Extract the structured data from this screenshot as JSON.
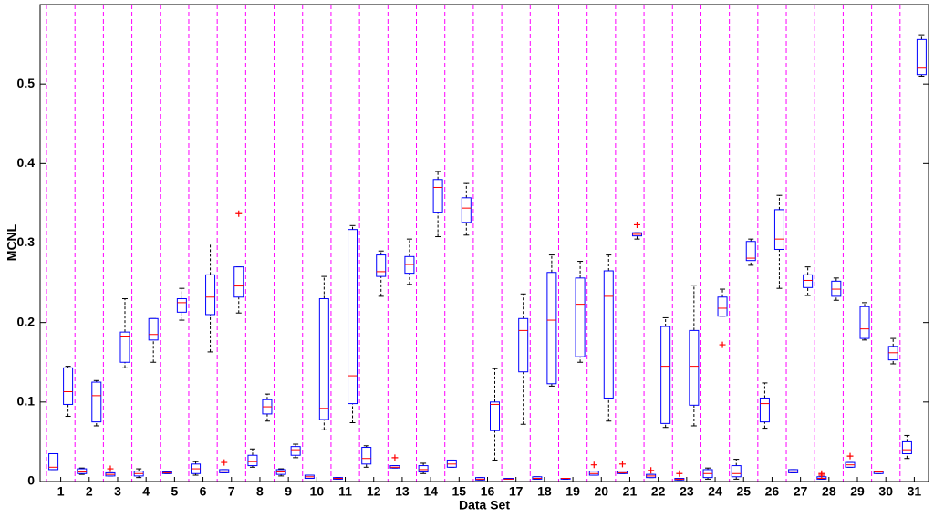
{
  "chart_data": {
    "type": "boxplot",
    "x_label": "Data Set",
    "y_label": "MCNL",
    "categories": [
      "1",
      "2",
      "3",
      "4",
      "5",
      "6",
      "7",
      "8",
      "9",
      "10",
      "11",
      "12",
      "13",
      "14",
      "15",
      "16",
      "17",
      "18",
      "19",
      "20",
      "21",
      "22",
      "23",
      "24",
      "25",
      "26",
      "27",
      "28",
      "29",
      "30",
      "31"
    ],
    "ylim": [
      0,
      0.6
    ],
    "yticks": [
      0,
      0.1,
      0.2,
      0.3,
      0.4,
      0.5
    ],
    "grid": false,
    "box_color": "#0000ff",
    "median_color": "#ff0000",
    "whisker_color": "#000000",
    "outlier_color": "#ff0000",
    "separator_color": "#ff00ff",
    "series": [
      {
        "values": [
          {
            "min": 0.015,
            "q1": 0.015,
            "median": 0.018,
            "q3": 0.035,
            "max": 0.035,
            "outliers": []
          },
          {
            "min": 0.009,
            "q1": 0.01,
            "median": 0.012,
            "q3": 0.016,
            "max": 0.017,
            "outliers": []
          },
          {
            "min": 0.007,
            "q1": 0.007,
            "median": 0.009,
            "q3": 0.011,
            "max": 0.011,
            "outliers": [
              0.016
            ]
          },
          {
            "min": 0.005,
            "q1": 0.007,
            "median": 0.01,
            "q3": 0.013,
            "max": 0.016,
            "outliers": []
          },
          {
            "min": 0.01,
            "q1": 0.01,
            "median": 0.011,
            "q3": 0.012,
            "max": 0.012,
            "outliers": []
          },
          {
            "min": 0.008,
            "q1": 0.01,
            "median": 0.016,
            "q3": 0.022,
            "max": 0.025,
            "outliers": []
          },
          {
            "min": 0.011,
            "q1": 0.011,
            "median": 0.013,
            "q3": 0.015,
            "max": 0.015,
            "outliers": [
              0.024
            ]
          },
          {
            "min": 0.018,
            "q1": 0.02,
            "median": 0.025,
            "q3": 0.033,
            "max": 0.041,
            "outliers": []
          },
          {
            "min": 0.007,
            "q1": 0.009,
            "median": 0.012,
            "q3": 0.015,
            "max": 0.016,
            "outliers": []
          },
          {
            "min": 0.004,
            "q1": 0.004,
            "median": 0.006,
            "q3": 0.008,
            "max": 0.008,
            "outliers": []
          },
          {
            "min": 0.003,
            "q1": 0.003,
            "median": 0.004,
            "q3": 0.005,
            "max": 0.005,
            "outliers": []
          },
          {
            "min": 0.018,
            "q1": 0.022,
            "median": 0.029,
            "q3": 0.043,
            "max": 0.045,
            "outliers": []
          },
          {
            "min": 0.017,
            "q1": 0.017,
            "median": 0.018,
            "q3": 0.02,
            "max": 0.02,
            "outliers": [
              0.03
            ]
          },
          {
            "min": 0.01,
            "q1": 0.012,
            "median": 0.015,
            "q3": 0.02,
            "max": 0.023,
            "outliers": []
          },
          {
            "min": 0.018,
            "q1": 0.018,
            "median": 0.022,
            "q3": 0.027,
            "max": 0.027,
            "outliers": []
          },
          {
            "min": 0.002,
            "q1": 0.002,
            "median": 0.003,
            "q3": 0.005,
            "max": 0.005,
            "outliers": []
          },
          {
            "min": 0.003,
            "q1": 0.003,
            "median": 0.003,
            "q3": 0.004,
            "max": 0.004,
            "outliers": []
          },
          {
            "min": 0.003,
            "q1": 0.003,
            "median": 0.004,
            "q3": 0.006,
            "max": 0.006,
            "outliers": []
          },
          {
            "min": 0.003,
            "q1": 0.003,
            "median": 0.004,
            "q3": 0.004,
            "max": 0.004,
            "outliers": []
          },
          {
            "min": 0.008,
            "q1": 0.008,
            "median": 0.01,
            "q3": 0.013,
            "max": 0.013,
            "outliers": [
              0.021
            ]
          },
          {
            "min": 0.01,
            "q1": 0.01,
            "median": 0.011,
            "q3": 0.013,
            "max": 0.013,
            "outliers": [
              0.022
            ]
          },
          {
            "min": 0.005,
            "q1": 0.005,
            "median": 0.007,
            "q3": 0.009,
            "max": 0.009,
            "outliers": [
              0.014
            ]
          },
          {
            "min": 0.002,
            "q1": 0.002,
            "median": 0.003,
            "q3": 0.004,
            "max": 0.004,
            "outliers": [
              0.01
            ]
          },
          {
            "min": 0.003,
            "q1": 0.005,
            "median": 0.01,
            "q3": 0.015,
            "max": 0.017,
            "outliers": []
          },
          {
            "min": 0.003,
            "q1": 0.006,
            "median": 0.01,
            "q3": 0.02,
            "max": 0.028,
            "outliers": []
          },
          {
            "min": 0.067,
            "q1": 0.075,
            "median": 0.098,
            "q3": 0.105,
            "max": 0.124,
            "outliers": []
          },
          {
            "min": 0.011,
            "q1": 0.011,
            "median": 0.013,
            "q3": 0.015,
            "max": 0.015,
            "outliers": []
          },
          {
            "min": 0.003,
            "q1": 0.003,
            "median": 0.004,
            "q3": 0.006,
            "max": 0.006,
            "outliers": [
              0.008,
              0.01
            ]
          },
          {
            "min": 0.018,
            "q1": 0.018,
            "median": 0.021,
            "q3": 0.024,
            "max": 0.024,
            "outliers": [
              0.032
            ]
          },
          {
            "min": 0.01,
            "q1": 0.01,
            "median": 0.012,
            "q3": 0.013,
            "max": 0.013,
            "outliers": []
          },
          {
            "min": 0.029,
            "q1": 0.035,
            "median": 0.04,
            "q3": 0.05,
            "max": 0.058,
            "outliers": []
          }
        ]
      },
      {
        "values": [
          {
            "min": 0.082,
            "q1": 0.097,
            "median": 0.113,
            "q3": 0.143,
            "max": 0.145,
            "outliers": []
          },
          {
            "min": 0.07,
            "q1": 0.075,
            "median": 0.108,
            "q3": 0.125,
            "max": 0.127,
            "outliers": []
          },
          {
            "min": 0.143,
            "q1": 0.15,
            "median": 0.183,
            "q3": 0.188,
            "max": 0.23,
            "outliers": []
          },
          {
            "min": 0.15,
            "q1": 0.178,
            "median": 0.185,
            "q3": 0.205,
            "max": 0.205,
            "outliers": []
          },
          {
            "min": 0.203,
            "q1": 0.213,
            "median": 0.225,
            "q3": 0.23,
            "max": 0.243,
            "outliers": []
          },
          {
            "min": 0.163,
            "q1": 0.21,
            "median": 0.232,
            "q3": 0.26,
            "max": 0.3,
            "outliers": []
          },
          {
            "min": 0.212,
            "q1": 0.232,
            "median": 0.246,
            "q3": 0.27,
            "max": 0.27,
            "outliers": [
              0.337
            ]
          },
          {
            "min": 0.076,
            "q1": 0.085,
            "median": 0.094,
            "q3": 0.103,
            "max": 0.11,
            "outliers": []
          },
          {
            "min": 0.03,
            "q1": 0.033,
            "median": 0.04,
            "q3": 0.044,
            "max": 0.047,
            "outliers": []
          },
          {
            "min": 0.065,
            "q1": 0.078,
            "median": 0.092,
            "q3": 0.23,
            "max": 0.258,
            "outliers": []
          },
          {
            "min": 0.074,
            "q1": 0.098,
            "median": 0.133,
            "q3": 0.317,
            "max": 0.322,
            "outliers": []
          },
          {
            "min": 0.233,
            "q1": 0.258,
            "median": 0.264,
            "q3": 0.285,
            "max": 0.29,
            "outliers": []
          },
          {
            "min": 0.248,
            "q1": 0.262,
            "median": 0.273,
            "q3": 0.283,
            "max": 0.305,
            "outliers": []
          },
          {
            "min": 0.308,
            "q1": 0.338,
            "median": 0.37,
            "q3": 0.38,
            "max": 0.39,
            "outliers": []
          },
          {
            "min": 0.31,
            "q1": 0.326,
            "median": 0.344,
            "q3": 0.357,
            "max": 0.375,
            "outliers": []
          },
          {
            "min": 0.027,
            "q1": 0.064,
            "median": 0.097,
            "q3": 0.1,
            "max": 0.142,
            "outliers": []
          },
          {
            "min": 0.072,
            "q1": 0.138,
            "median": 0.19,
            "q3": 0.205,
            "max": 0.236,
            "outliers": []
          },
          {
            "min": 0.12,
            "q1": 0.123,
            "median": 0.203,
            "q3": 0.263,
            "max": 0.285,
            "outliers": []
          },
          {
            "min": 0.15,
            "q1": 0.157,
            "median": 0.223,
            "q3": 0.256,
            "max": 0.277,
            "outliers": []
          },
          {
            "min": 0.076,
            "q1": 0.105,
            "median": 0.233,
            "q3": 0.265,
            "max": 0.285,
            "outliers": []
          },
          {
            "min": 0.305,
            "q1": 0.309,
            "median": 0.311,
            "q3": 0.313,
            "max": 0.313,
            "outliers": [
              0.323
            ]
          },
          {
            "min": 0.068,
            "q1": 0.073,
            "median": 0.145,
            "q3": 0.195,
            "max": 0.206,
            "outliers": []
          },
          {
            "min": 0.07,
            "q1": 0.096,
            "median": 0.145,
            "q3": 0.19,
            "max": 0.247,
            "outliers": []
          },
          {
            "min": 0.208,
            "q1": 0.208,
            "median": 0.218,
            "q3": 0.232,
            "max": 0.242,
            "outliers": [
              0.172
            ]
          },
          {
            "min": 0.272,
            "q1": 0.278,
            "median": 0.281,
            "q3": 0.302,
            "max": 0.305,
            "outliers": []
          },
          {
            "min": 0.243,
            "q1": 0.292,
            "median": 0.305,
            "q3": 0.342,
            "max": 0.36,
            "outliers": []
          },
          {
            "min": 0.234,
            "q1": 0.244,
            "median": 0.253,
            "q3": 0.26,
            "max": 0.27,
            "outliers": []
          },
          {
            "min": 0.228,
            "q1": 0.233,
            "median": 0.242,
            "q3": 0.252,
            "max": 0.256,
            "outliers": []
          },
          {
            "min": 0.178,
            "q1": 0.18,
            "median": 0.192,
            "q3": 0.22,
            "max": 0.225,
            "outliers": []
          },
          {
            "min": 0.148,
            "q1": 0.153,
            "median": 0.162,
            "q3": 0.17,
            "max": 0.18,
            "outliers": []
          },
          {
            "min": 0.51,
            "q1": 0.512,
            "median": 0.52,
            "q3": 0.556,
            "max": 0.562,
            "outliers": []
          }
        ]
      }
    ]
  }
}
